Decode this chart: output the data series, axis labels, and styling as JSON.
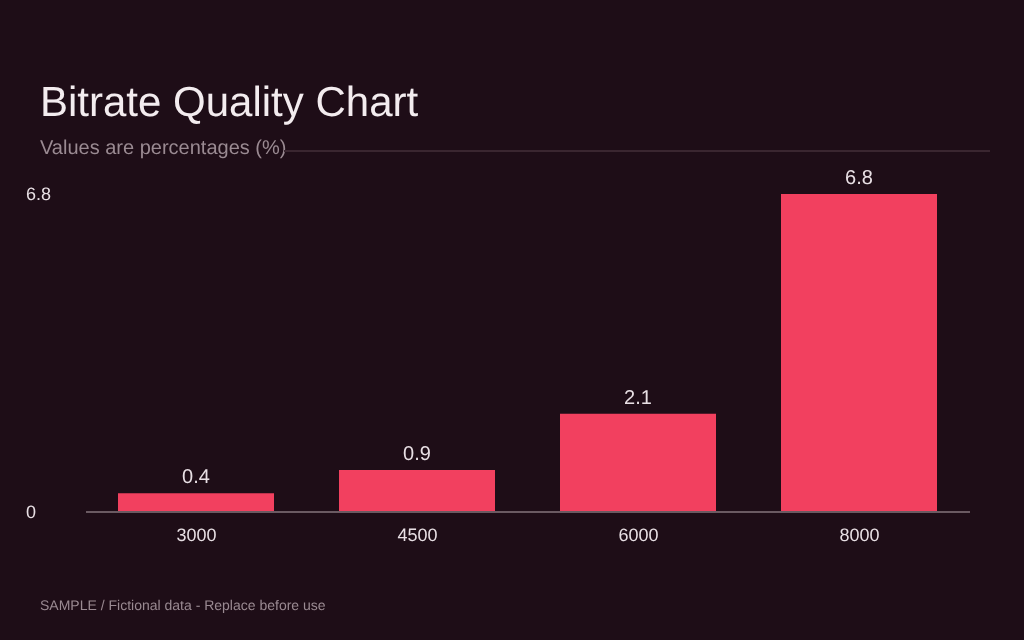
{
  "chart_data": {
    "type": "bar",
    "title": "Bitrate Quality Chart",
    "subtitle": "Values are percentages (%)",
    "categories": [
      "3000",
      "4500",
      "6000",
      "8000"
    ],
    "values": [
      0.4,
      0.9,
      2.1,
      6.8
    ],
    "color": "#f2405f",
    "ylim": [
      0,
      6.8
    ],
    "yticks": [
      0,
      6.8
    ],
    "grid": false,
    "data_labels": true,
    "legend": false,
    "annotations": [
      "SAMPLE / Fictional data - Replace before use"
    ]
  }
}
